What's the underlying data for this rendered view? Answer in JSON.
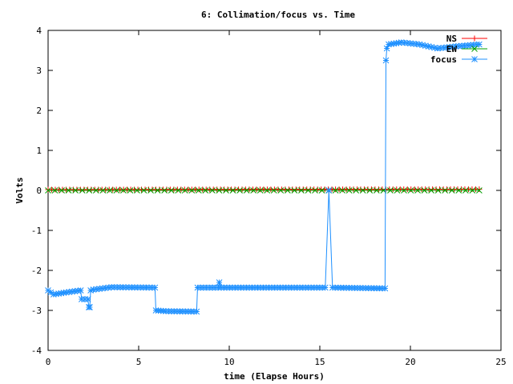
{
  "chart_data": {
    "type": "line",
    "title": "6: Collimation/focus vs. Time",
    "xlabel": "time (Elapse Hours)",
    "ylabel": "Volts",
    "xlim": [
      0,
      25
    ],
    "ylim": [
      -4,
      4
    ],
    "xticks": [
      "0",
      "5",
      "10",
      "15",
      "20",
      "25"
    ],
    "yticks": [
      "-4",
      "-3",
      "-2",
      "-1",
      "0",
      "1",
      "2",
      "3",
      "4"
    ],
    "grid": false,
    "legend_position": "top-right",
    "series": [
      {
        "name": "NS",
        "color": "#ff0000",
        "marker": "plus",
        "x": [
          0,
          23.8
        ],
        "y": [
          0.02,
          0.03
        ]
      },
      {
        "name": "EW",
        "color": "#00a000",
        "marker": "cross",
        "x": [
          0,
          23.8
        ],
        "y": [
          0.0,
          0.0
        ]
      },
      {
        "name": "focus",
        "color": "#1e90ff",
        "marker": "star",
        "x": [
          0,
          0.3,
          1.0,
          1.8,
          1.85,
          2.2,
          2.25,
          2.3,
          2.35,
          2.5,
          3.5,
          5.9,
          5.95,
          6.5,
          8.2,
          8.25,
          9.4,
          9.45,
          9.55,
          15.3,
          15.5,
          15.7,
          18.6,
          18.65,
          18.7,
          18.8,
          19.5,
          20.5,
          21.5,
          22.5,
          23.8
        ],
        "y": [
          -2.5,
          -2.6,
          -2.55,
          -2.5,
          -2.72,
          -2.72,
          -2.92,
          -2.92,
          -2.5,
          -2.48,
          -2.42,
          -2.43,
          -3.0,
          -3.02,
          -3.03,
          -2.43,
          -2.43,
          -2.3,
          -2.43,
          -2.43,
          0.0,
          -2.43,
          -2.45,
          3.25,
          3.55,
          3.65,
          3.7,
          3.65,
          3.55,
          3.6,
          3.65
        ]
      }
    ]
  }
}
